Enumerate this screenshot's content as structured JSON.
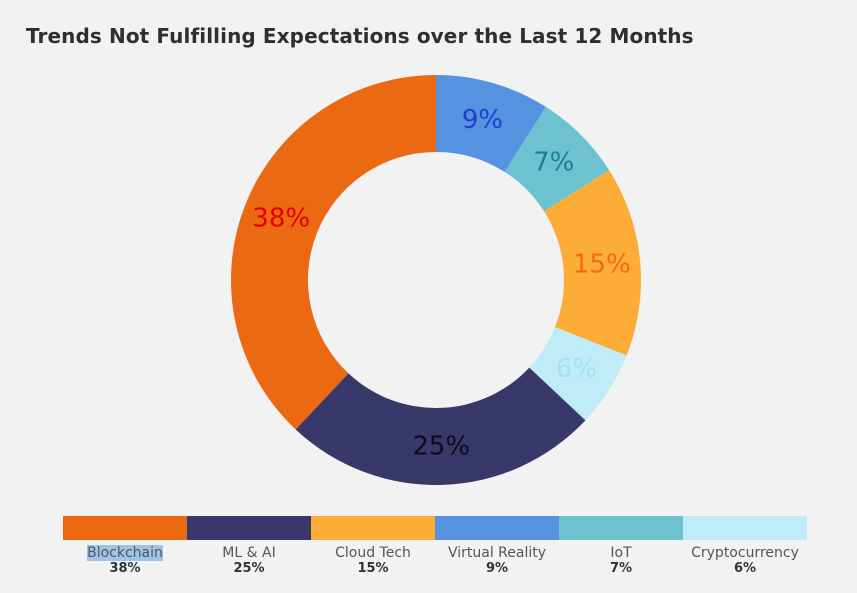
{
  "chart_data": {
    "type": "pie",
    "title": "Trends Not Fulfilling Expectations over the Last 12 Months",
    "slices": [
      {
        "label": "Virtual Reality",
        "value": 9,
        "display": "9%",
        "color": "#5592e0",
        "label_color": "#1f3fcc"
      },
      {
        "label": "IoT",
        "value": 7,
        "display": "7%",
        "color": "#6cc2cf",
        "label_color": "#1a7f8f"
      },
      {
        "label": "Cloud Tech",
        "value": 15,
        "display": "15%",
        "color": "#fbad37",
        "label_color": "#f26b0f"
      },
      {
        "label": "Cryptocurrency",
        "value": 6,
        "display": "6%",
        "color": "#c0ecf7",
        "label_color": "#9fe2f5"
      },
      {
        "label": "ML & AI",
        "value": 25,
        "display": "25%",
        "color": "#38386a",
        "label_color": "#0d0d1a"
      },
      {
        "label": "Blockchain",
        "value": 38,
        "display": "38%",
        "color": "#ec6914",
        "label_color": "#e60000"
      }
    ],
    "legend": [
      {
        "name": "Blockchain",
        "pct": "38%",
        "color": "#ec6914",
        "highlighted": true
      },
      {
        "name": "ML & AI",
        "pct": "25%",
        "color": "#38386a"
      },
      {
        "name": "Cloud Tech",
        "pct": "15%",
        "color": "#fbad37"
      },
      {
        "name": "Virtual Reality",
        "pct": "9%",
        "color": "#5592e0"
      },
      {
        "name": "IoT",
        "pct": "7%",
        "color": "#6cc2cf"
      },
      {
        "name": "Cryptocurrency",
        "pct": "6%",
        "color": "#c0ecf7"
      }
    ]
  }
}
